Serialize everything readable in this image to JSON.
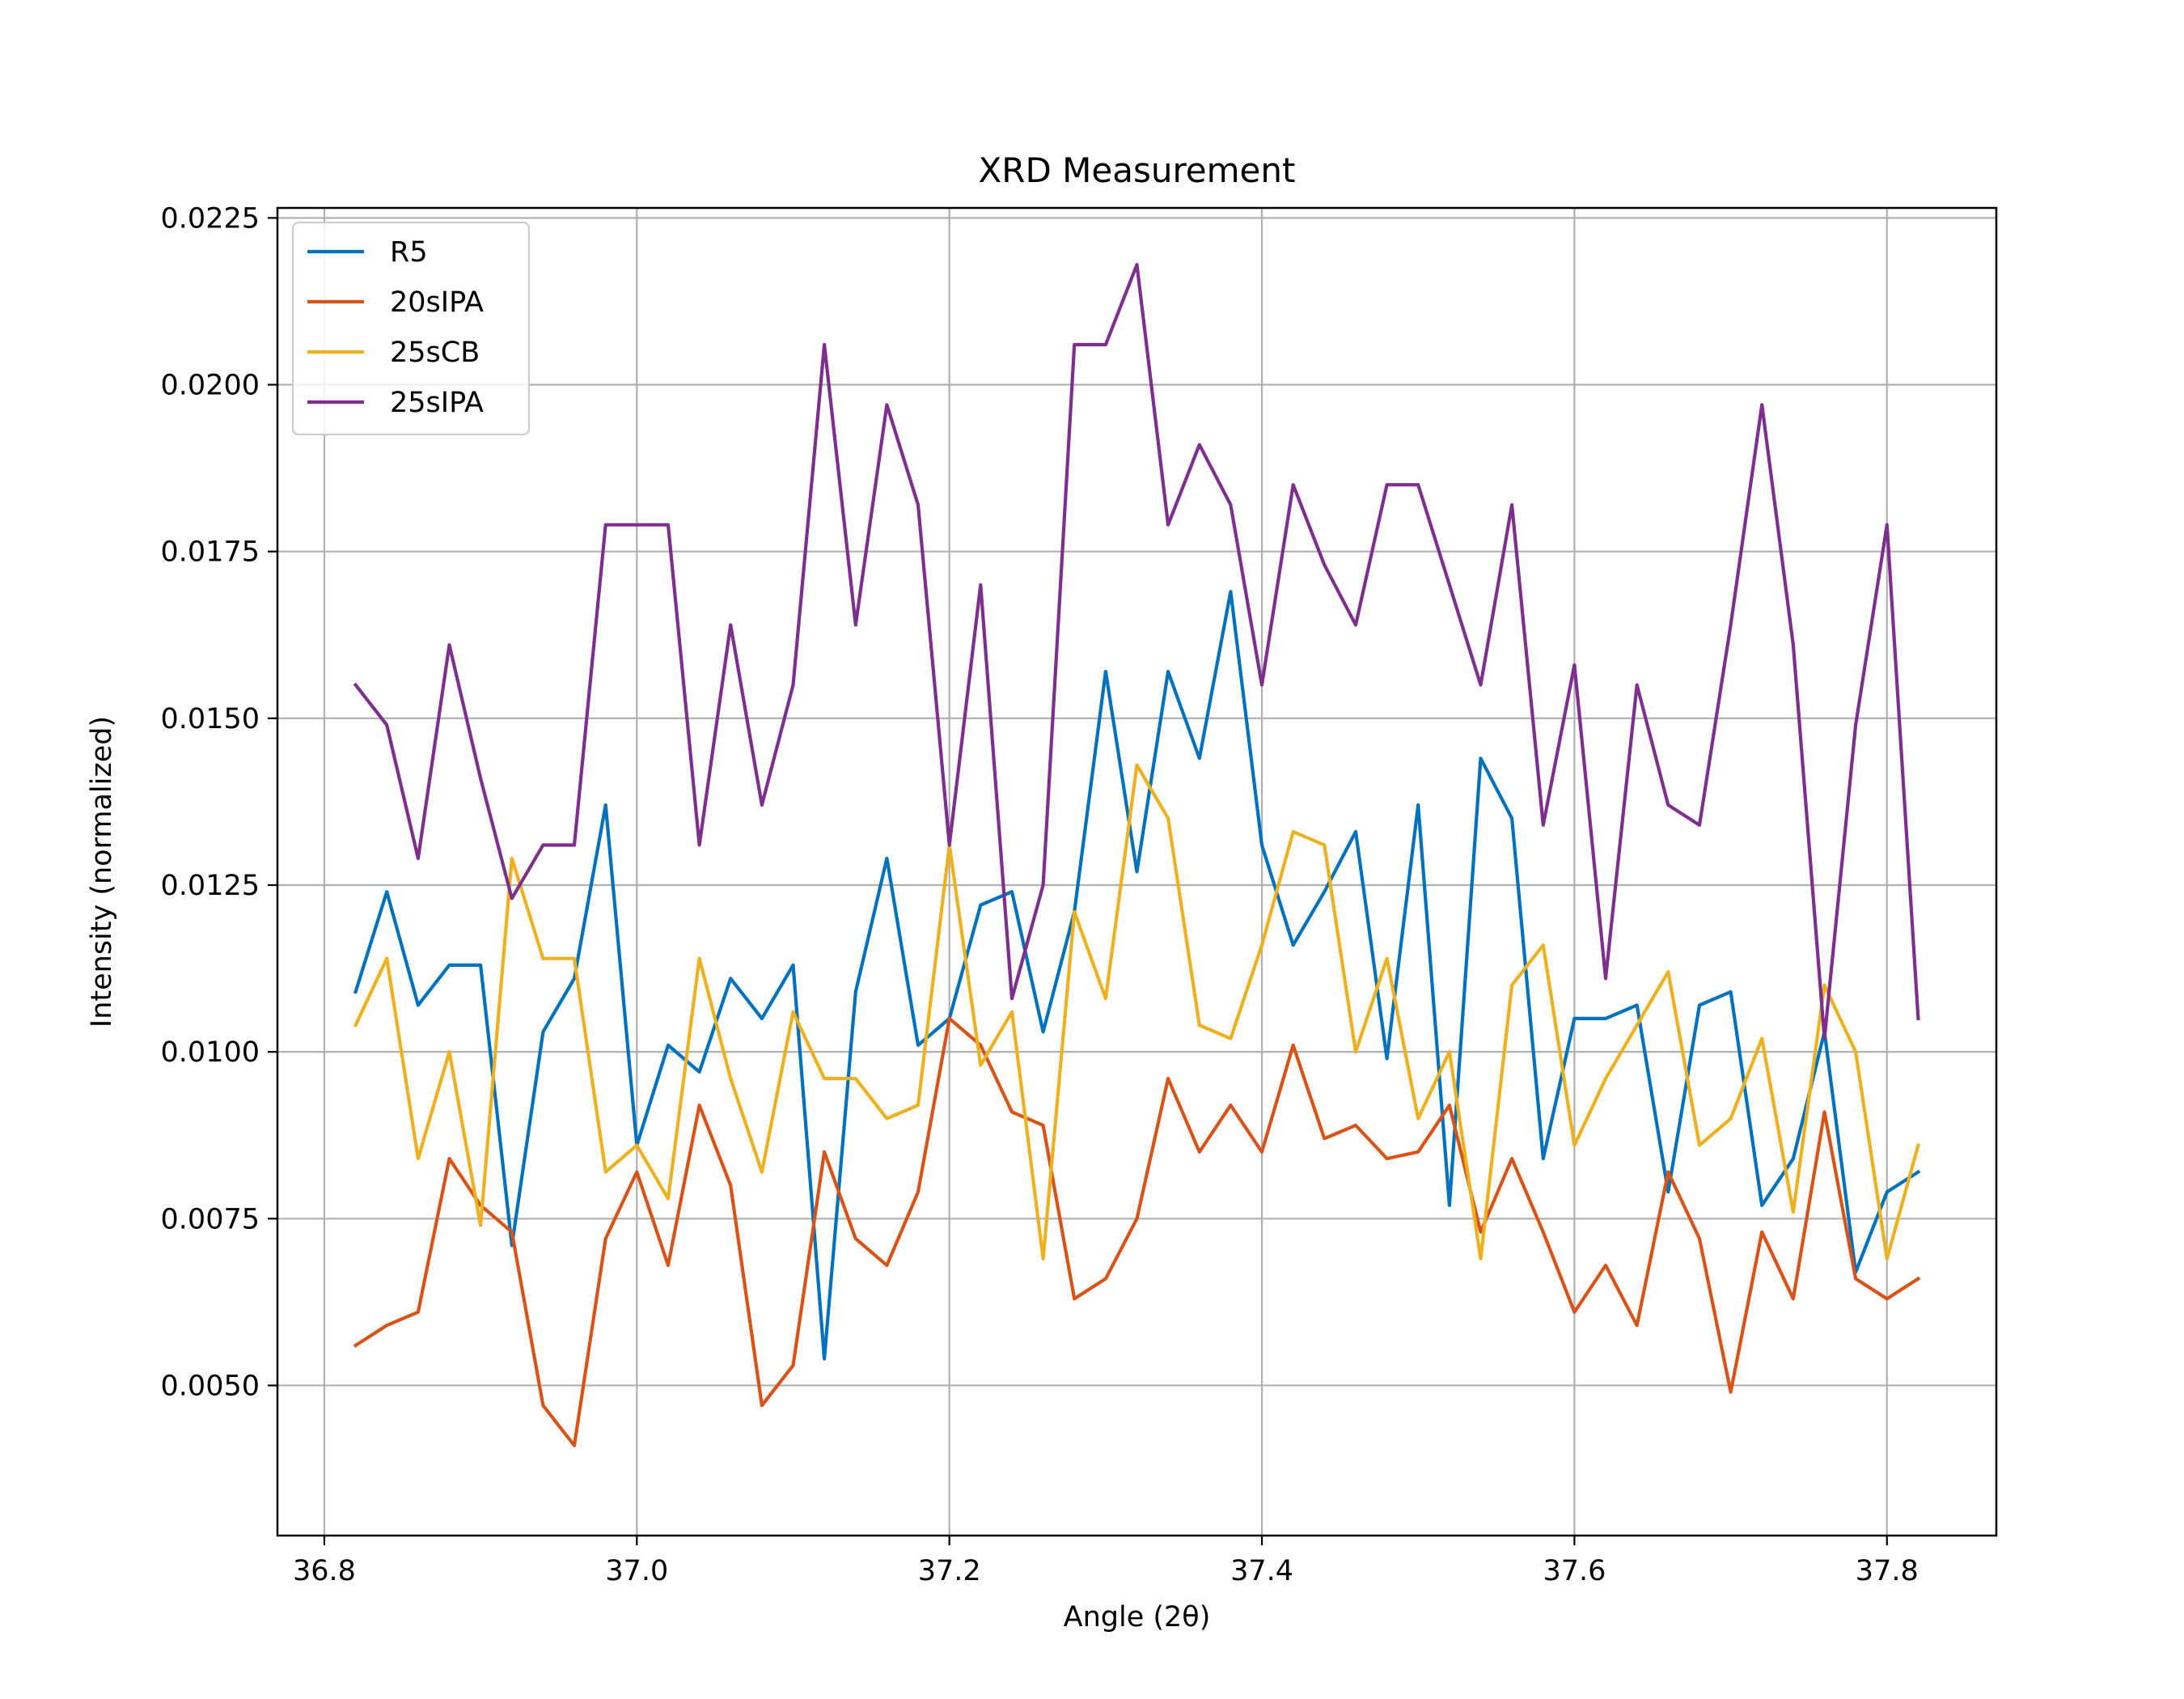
{
  "chart_data": {
    "type": "line",
    "title": "XRD Measurement",
    "xlabel": "Angle (2θ)",
    "ylabel": "Intensity (normalized)",
    "xlim": [
      36.77,
      37.87
    ],
    "ylim": [
      0.00275,
      0.02265
    ],
    "xticks": [
      {
        "value": 36.8,
        "label": "36.8"
      },
      {
        "value": 37.0,
        "label": "37.0"
      },
      {
        "value": 37.2,
        "label": "37.2"
      },
      {
        "value": 37.4,
        "label": "37.4"
      },
      {
        "value": 37.6,
        "label": "37.6"
      },
      {
        "value": 37.8,
        "label": "37.8"
      }
    ],
    "yticks": [
      {
        "value": 0.005,
        "label": "0.0050"
      },
      {
        "value": 0.0075,
        "label": "0.0075"
      },
      {
        "value": 0.01,
        "label": "0.0100"
      },
      {
        "value": 0.0125,
        "label": "0.0125"
      },
      {
        "value": 0.015,
        "label": "0.0150"
      },
      {
        "value": 0.0175,
        "label": "0.0175"
      },
      {
        "value": 0.02,
        "label": "0.0200"
      },
      {
        "value": 0.0225,
        "label": "0.0225"
      }
    ],
    "grid": true,
    "legend_position": "top-left",
    "x": [
      36.82,
      36.84,
      36.86,
      36.88,
      36.9,
      36.92,
      36.94,
      36.96,
      36.98,
      37.0,
      37.02,
      37.04,
      37.06,
      37.08,
      37.1,
      37.12,
      37.14,
      37.16,
      37.18,
      37.2,
      37.22,
      37.24,
      37.26,
      37.28,
      37.3,
      37.32,
      37.34,
      37.36,
      37.38,
      37.4,
      37.42,
      37.44,
      37.46,
      37.48,
      37.5,
      37.52,
      37.54,
      37.56,
      37.58,
      37.6,
      37.62,
      37.64,
      37.66,
      37.68,
      37.7,
      37.72,
      37.74,
      37.76,
      37.78,
      37.8,
      37.82
    ],
    "series": [
      {
        "name": "R5",
        "color": "#0072BD",
        "values": [
          0.0109,
          0.0124,
          0.0107,
          0.0113,
          0.0113,
          0.0071,
          0.0103,
          0.0111,
          0.0137,
          0.0086,
          0.0101,
          0.0097,
          0.0111,
          0.0105,
          0.0113,
          0.0054,
          0.0109,
          0.0129,
          0.0101,
          0.0105,
          0.0122,
          0.0124,
          0.0103,
          0.0121,
          0.0157,
          0.0127,
          0.0157,
          0.0144,
          0.0169,
          0.0131,
          0.0116,
          0.0124,
          0.0133,
          0.0099,
          0.0137,
          0.0077,
          0.0144,
          0.0135,
          0.0084,
          0.0105,
          0.0105,
          0.0107,
          0.0079,
          0.0107,
          0.0109,
          0.0077,
          0.0084,
          0.0103,
          0.0067,
          0.0079,
          0.0082
        ]
      },
      {
        "name": "20sIPA",
        "color": "#D95319",
        "values": [
          0.0056,
          0.0059,
          0.0061,
          0.0084,
          0.0077,
          0.0073,
          0.0047,
          0.0041,
          0.0072,
          0.0082,
          0.0068,
          0.0092,
          0.008,
          0.0047,
          0.0053,
          0.0085,
          0.0072,
          0.0068,
          0.0079,
          0.0105,
          0.0101,
          0.0091,
          0.0089,
          0.0063,
          0.0066,
          0.0075,
          0.0096,
          0.0085,
          0.0092,
          0.0085,
          0.0101,
          0.0087,
          0.0089,
          0.0084,
          0.0085,
          0.0092,
          0.0073,
          0.0084,
          0.0073,
          0.0061,
          0.0068,
          0.0059,
          0.0082,
          0.0072,
          0.0049,
          0.0073,
          0.0063,
          0.0091,
          0.0066,
          0.0063,
          0.0066
        ]
      },
      {
        "name": "25sCB",
        "color": "#EDB120",
        "values": [
          0.0104,
          0.0114,
          0.0084,
          0.01,
          0.0074,
          0.0129,
          0.0114,
          0.0114,
          0.0082,
          0.0086,
          0.0078,
          0.0114,
          0.0096,
          0.0082,
          0.0106,
          0.0096,
          0.0096,
          0.009,
          0.0092,
          0.0131,
          0.0098,
          0.0106,
          0.0069,
          0.0121,
          0.0108,
          0.0143,
          0.0135,
          0.0104,
          0.0102,
          0.0116,
          0.0133,
          0.0131,
          0.01,
          0.0114,
          0.009,
          0.01,
          0.0069,
          0.011,
          0.0116,
          0.0086,
          0.0096,
          0.0104,
          0.0112,
          0.0086,
          0.009,
          0.0102,
          0.0076,
          0.011,
          0.01,
          0.0069,
          0.0086
        ]
      },
      {
        "name": "25sIPA",
        "color": "#7E2F8E",
        "values": [
          0.0155,
          0.0149,
          0.0129,
          0.0161,
          0.0141,
          0.0123,
          0.0131,
          0.0131,
          0.0179,
          0.0179,
          0.0179,
          0.0131,
          0.0164,
          0.0137,
          0.0155,
          0.0206,
          0.0164,
          0.0197,
          0.0182,
          0.0131,
          0.017,
          0.0108,
          0.0125,
          0.0206,
          0.0206,
          0.0218,
          0.0179,
          0.0191,
          0.0182,
          0.0155,
          0.0185,
          0.0173,
          0.0164,
          0.0185,
          0.0185,
          0.017,
          0.0155,
          0.0182,
          0.0134,
          0.0158,
          0.0111,
          0.0155,
          0.0137,
          0.0134,
          0.0164,
          0.0197,
          0.0161,
          0.0102,
          0.0149,
          0.0179,
          0.0105
        ]
      }
    ]
  }
}
